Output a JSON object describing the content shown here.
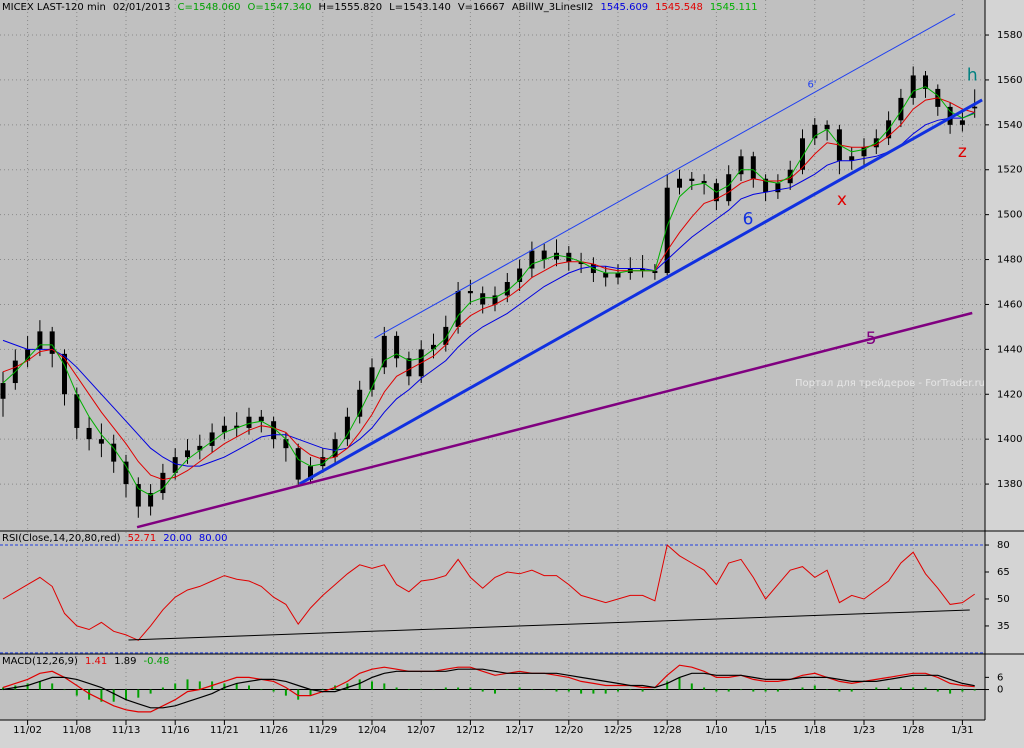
{
  "chart_data": [
    {
      "type": "candlestick",
      "header": [
        {
          "text": "MICEX LAST-120 min",
          "color": "#000000"
        },
        {
          "text": "02/01/2013",
          "color": "#000000"
        },
        {
          "text": "C=1548.060",
          "color": "#00a000"
        },
        {
          "text": "O=1547.340",
          "color": "#00a000"
        },
        {
          "text": "H=1555.820",
          "color": "#000000"
        },
        {
          "text": "L=1543.140",
          "color": "#000000"
        },
        {
          "text": "V=16667",
          "color": "#000000"
        },
        {
          "text": "ABillW_3LinesII2",
          "color": "#000000"
        },
        {
          "text": "1545.609",
          "color": "#0000e0"
        },
        {
          "text": "1545.548",
          "color": "#e00000"
        },
        {
          "text": "1545.111",
          "color": "#00b000"
        }
      ],
      "categories": [
        null,
        null,
        "11/02",
        null,
        null,
        null,
        "11/08",
        null,
        null,
        null,
        "11/13",
        null,
        null,
        null,
        "11/16",
        null,
        null,
        null,
        "11/21",
        null,
        null,
        null,
        "11/26",
        null,
        null,
        null,
        "11/29",
        null,
        null,
        null,
        "12/04",
        null,
        null,
        null,
        "12/07",
        null,
        null,
        null,
        "12/12",
        null,
        null,
        null,
        "12/17",
        null,
        null,
        null,
        "12/20",
        null,
        null,
        null,
        "12/25",
        null,
        null,
        null,
        "12/28",
        null,
        null,
        null,
        "1/10",
        null,
        null,
        null,
        "1/15",
        null,
        null,
        null,
        "1/18",
        null,
        null,
        null,
        "1/23",
        null,
        null,
        null,
        "1/28",
        null,
        null,
        null,
        "1/31",
        null
      ],
      "open": [
        1418,
        1425,
        1435,
        1440,
        1448,
        1438,
        1420,
        1405,
        1400,
        1398,
        1390,
        1380,
        1370,
        1376,
        1385,
        1392,
        1395,
        1397,
        1403,
        1406,
        1405,
        1410,
        1408,
        1400,
        1396,
        1382,
        1388,
        1392,
        1400,
        1410,
        1422,
        1432,
        1446,
        1436,
        1428,
        1440,
        1442,
        1450,
        1466,
        1465,
        1460,
        1464,
        1470,
        1476,
        1484,
        1480,
        1483,
        1479,
        1478,
        1474,
        1472,
        1474,
        1476,
        1475,
        1474,
        1512,
        1516,
        1515,
        1514,
        1506,
        1518,
        1526,
        1516,
        1510,
        1514,
        1520,
        1534,
        1540,
        1538,
        1524,
        1526,
        1530,
        1534,
        1542,
        1552,
        1562,
        1556,
        1548,
        1540,
        1547.34
      ],
      "high": [
        1430,
        1440,
        1446,
        1453,
        1450,
        1440,
        1423,
        1410,
        1407,
        1402,
        1393,
        1383,
        1380,
        1389,
        1396,
        1400,
        1402,
        1407,
        1410,
        1412,
        1414,
        1413,
        1410,
        1403,
        1398,
        1392,
        1396,
        1403,
        1414,
        1426,
        1436,
        1450,
        1448,
        1439,
        1444,
        1447,
        1455,
        1470,
        1471,
        1468,
        1468,
        1474,
        1480,
        1488,
        1487,
        1489,
        1486,
        1483,
        1481,
        1477,
        1478,
        1481,
        1482,
        1478,
        1518,
        1520,
        1519,
        1518,
        1516,
        1522,
        1529,
        1528,
        1518,
        1518,
        1524,
        1538,
        1543,
        1542,
        1540,
        1530,
        1534,
        1538,
        1546,
        1556,
        1566,
        1564,
        1558,
        1550,
        1547,
        1555.82
      ],
      "low": [
        1410,
        1422,
        1432,
        1437,
        1432,
        1415,
        1400,
        1395,
        1392,
        1385,
        1374,
        1365,
        1366,
        1373,
        1382,
        1389,
        1391,
        1394,
        1400,
        1401,
        1402,
        1403,
        1396,
        1390,
        1379,
        1380,
        1385,
        1389,
        1397,
        1407,
        1419,
        1429,
        1432,
        1424,
        1425,
        1436,
        1439,
        1447,
        1460,
        1456,
        1457,
        1461,
        1466,
        1472,
        1476,
        1477,
        1475,
        1474,
        1470,
        1468,
        1469,
        1471,
        1472,
        1471,
        1473,
        1509,
        1511,
        1509,
        1502,
        1504,
        1515,
        1512,
        1506,
        1507,
        1511,
        1518,
        1531,
        1533,
        1518,
        1520,
        1522,
        1527,
        1531,
        1539,
        1549,
        1552,
        1544,
        1536,
        1537,
        1543.14
      ],
      "close": [
        1425,
        1435,
        1440,
        1448,
        1438,
        1420,
        1405,
        1400,
        1398,
        1390,
        1380,
        1370,
        1376,
        1385,
        1392,
        1395,
        1397,
        1403,
        1406,
        1405,
        1410,
        1408,
        1400,
        1396,
        1382,
        1388,
        1392,
        1400,
        1410,
        1422,
        1432,
        1446,
        1436,
        1428,
        1440,
        1442,
        1450,
        1466,
        1465,
        1460,
        1464,
        1470,
        1476,
        1484,
        1480,
        1483,
        1479,
        1478,
        1474,
        1472,
        1474,
        1476,
        1475,
        1474,
        1512,
        1516,
        1515,
        1514,
        1506,
        1518,
        1526,
        1516,
        1510,
        1514,
        1520,
        1534,
        1540,
        1538,
        1524,
        1526,
        1530,
        1534,
        1542,
        1552,
        1562,
        1556,
        1548,
        1540,
        1542,
        1548.06
      ],
      "candle_color": "#000000",
      "series": [
        {
          "color": "#0000e0",
          "values": [
            1444,
            1442,
            1440,
            1440,
            1440,
            1437,
            1432,
            1426,
            1420,
            1414,
            1408,
            1402,
            1396,
            1392,
            1389,
            1388,
            1388,
            1390,
            1392,
            1395,
            1398,
            1401,
            1402,
            1402,
            1400,
            1398,
            1396,
            1395,
            1396,
            1400,
            1405,
            1412,
            1418,
            1422,
            1427,
            1431,
            1435,
            1441,
            1446,
            1450,
            1453,
            1456,
            1460,
            1464,
            1468,
            1471,
            1474,
            1476,
            1477,
            1477,
            1476,
            1476,
            1476,
            1475,
            1480,
            1485,
            1490,
            1494,
            1498,
            1502,
            1507,
            1509,
            1510,
            1511,
            1512,
            1515,
            1518,
            1522,
            1524,
            1524,
            1525,
            1526,
            1528,
            1531,
            1536,
            1540,
            1542,
            1543,
            1543,
            1545.6
          ]
        },
        {
          "color": "#e00000",
          "values": [
            1430,
            1432,
            1435,
            1439,
            1440,
            1436,
            1428,
            1420,
            1412,
            1405,
            1398,
            1390,
            1384,
            1382,
            1383,
            1386,
            1390,
            1394,
            1398,
            1401,
            1404,
            1406,
            1405,
            1403,
            1397,
            1393,
            1391,
            1392,
            1396,
            1403,
            1411,
            1421,
            1428,
            1431,
            1434,
            1437,
            1442,
            1450,
            1455,
            1458,
            1460,
            1463,
            1467,
            1472,
            1475,
            1478,
            1479,
            1479,
            1478,
            1476,
            1475,
            1475,
            1475,
            1475,
            1484,
            1492,
            1499,
            1505,
            1507,
            1510,
            1514,
            1516,
            1515,
            1515,
            1516,
            1521,
            1527,
            1532,
            1531,
            1530,
            1530,
            1531,
            1535,
            1540,
            1547,
            1551,
            1552,
            1550,
            1547,
            1545.5
          ]
        },
        {
          "color": "#00b000",
          "values": [
            1425,
            1430,
            1436,
            1442,
            1442,
            1433,
            1420,
            1410,
            1402,
            1396,
            1388,
            1378,
            1375,
            1378,
            1385,
            1391,
            1395,
            1399,
            1403,
            1405,
            1407,
            1408,
            1405,
            1400,
            1391,
            1388,
            1389,
            1394,
            1402,
            1412,
            1423,
            1435,
            1438,
            1435,
            1436,
            1440,
            1445,
            1455,
            1461,
            1463,
            1463,
            1466,
            1471,
            1478,
            1480,
            1482,
            1481,
            1479,
            1476,
            1474,
            1474,
            1475,
            1475,
            1475,
            1495,
            1508,
            1513,
            1514,
            1510,
            1513,
            1520,
            1520,
            1515,
            1514,
            1517,
            1526,
            1535,
            1538,
            1531,
            1528,
            1529,
            1532,
            1538,
            1546,
            1555,
            1557,
            1553,
            1546,
            1543,
            1545.1
          ]
        }
      ],
      "ylim": [
        1359.1,
        1595.6
      ],
      "yticks": [
        1380,
        1400,
        1420,
        1440,
        1460,
        1480,
        1500,
        1520,
        1540,
        1560,
        1580
      ],
      "grid": true,
      "trendlines": [
        {
          "label": "6",
          "color": "#1030e0",
          "width": 3,
          "from": [
            24.1,
            1380
          ],
          "to": [
            79.6,
            1551.1
          ]
        },
        {
          "label": "6'",
          "color": "#2040f0",
          "width": 1,
          "from": [
            30.2,
            1445.0
          ],
          "to": [
            77.4,
            1589.4
          ]
        },
        {
          "label": "5",
          "color": "#800080",
          "width": 2.5,
          "from": [
            10.9,
            1360.8
          ],
          "to": [
            78.8,
            1456.2
          ]
        }
      ],
      "annotations": [
        {
          "text": "h",
          "color": "#008080",
          "at": [
            78.8,
            1562
          ]
        },
        {
          "text": "z",
          "color": "#e00000",
          "at": [
            78.0,
            1528
          ]
        },
        {
          "text": "x",
          "color": "#e00000",
          "at": [
            68.2,
            1506.5
          ]
        }
      ],
      "watermark": "Портал для трейдеров - ForTrader.ru"
    },
    {
      "type": "line",
      "header": [
        {
          "text": "RSI(Close,14,20,80,red)",
          "color": "#000000"
        },
        {
          "text": "52.71",
          "color": "#e00000"
        },
        {
          "text": "20.00",
          "color": "#0000e0"
        },
        {
          "text": "80.00",
          "color": "#0000e0"
        }
      ],
      "series": [
        {
          "color": "#e00000",
          "values": [
            50,
            54,
            58,
            62,
            57,
            42,
            35,
            33,
            37,
            32,
            30,
            27,
            35,
            44,
            51,
            55,
            57,
            60,
            63,
            61,
            60,
            57,
            51,
            47,
            36,
            45,
            52,
            58,
            64,
            69,
            67,
            69,
            58,
            54,
            60,
            61,
            63,
            72,
            62,
            56,
            62,
            65,
            64,
            66,
            63,
            63,
            58,
            52,
            50,
            48,
            50,
            52,
            52,
            49,
            80,
            74,
            70,
            66,
            58,
            70,
            72,
            62,
            50,
            58,
            66,
            68,
            62,
            66,
            48,
            52,
            50,
            55,
            60,
            70,
            76,
            64,
            56,
            47,
            48,
            52.71
          ]
        }
      ],
      "levels": [
        20,
        80
      ],
      "level_color": "#2040e0",
      "ylim": [
        19.4,
        87.8
      ],
      "yticks": [
        35,
        50,
        65,
        80
      ],
      "trendlines": [
        {
          "color": "#000000",
          "width": 1,
          "from": [
            10.2,
            27.2
          ],
          "to": [
            78.6,
            43.9
          ]
        }
      ]
    },
    {
      "type": "macd",
      "header": [
        {
          "text": "MACD(12,26,9)",
          "color": "#000000"
        },
        {
          "text": "1.41",
          "color": "#e00000"
        },
        {
          "text": "1.89",
          "color": "#000000"
        },
        {
          "text": "-0.48",
          "color": "#00a000"
        }
      ],
      "series": [
        {
          "color": "#e00000",
          "values": [
            1,
            3,
            5,
            8,
            9,
            6,
            2,
            -2,
            -5,
            -8,
            -10,
            -11,
            -11,
            -8,
            -5,
            -1,
            0,
            2,
            4,
            6,
            6,
            5,
            4,
            1,
            -3,
            -3,
            -1,
            1,
            4,
            8,
            10,
            11,
            10,
            9,
            9,
            9,
            10,
            11,
            11,
            9,
            7,
            8,
            9,
            8,
            8,
            7,
            6,
            4,
            3,
            2,
            2,
            2,
            1,
            1,
            7,
            12,
            11,
            9,
            6,
            6,
            7,
            5,
            4,
            4,
            5,
            7,
            8,
            6,
            4,
            3,
            4,
            5,
            6,
            7,
            8,
            8,
            6,
            3,
            2,
            1.41
          ]
        },
        {
          "color": "#000000",
          "values": [
            0,
            1,
            2,
            4,
            6,
            6,
            5,
            3,
            1,
            -2,
            -5,
            -7,
            -9,
            -9,
            -8,
            -6,
            -4,
            -2,
            1,
            3,
            4,
            5,
            5,
            4,
            2,
            0,
            -1,
            -1,
            1,
            3,
            6,
            8,
            9,
            9,
            9,
            9,
            9,
            10,
            10,
            10,
            9,
            8,
            8,
            8,
            8,
            8,
            7,
            6,
            5,
            4,
            3,
            2,
            2,
            1,
            3,
            6,
            8,
            8,
            7,
            7,
            7,
            6,
            5,
            5,
            5,
            6,
            6,
            6,
            5,
            4,
            4,
            4,
            5,
            6,
            7,
            7,
            7,
            5,
            3,
            1.89
          ]
        }
      ],
      "histogram": {
        "color": "#00a000",
        "values": [
          1,
          2,
          3,
          4,
          3,
          0,
          -3,
          -5,
          -6,
          -6,
          -5,
          -4,
          -2,
          1,
          3,
          5,
          4,
          4,
          3,
          3,
          2,
          0,
          -1,
          -3,
          -5,
          -3,
          0,
          2,
          3,
          5,
          4,
          3,
          1,
          0,
          0,
          0,
          1,
          1,
          1,
          -1,
          -2,
          0,
          1,
          0,
          0,
          -1,
          -1,
          -2,
          -2,
          -2,
          -1,
          0,
          -1,
          0,
          4,
          6,
          3,
          1,
          -1,
          -1,
          0,
          -1,
          -1,
          -1,
          0,
          1,
          2,
          0,
          -1,
          -1,
          0,
          1,
          1,
          1,
          1,
          1,
          -1,
          -2,
          -1,
          -0.48
        ]
      },
      "ylim": [
        -15,
        17.5
      ],
      "yticks": [
        0,
        6
      ],
      "zero_line": true
    }
  ]
}
